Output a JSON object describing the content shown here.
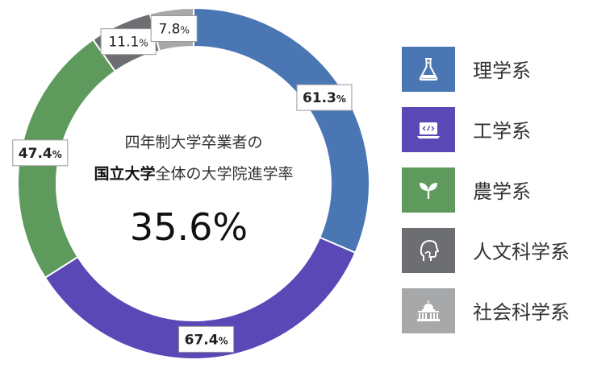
{
  "center": {
    "line1": "四年制大学卒業者の",
    "line2_bold": "国立大学",
    "line2_rest": "全体の大学院進学率",
    "value": "35.6%"
  },
  "chart_data": {
    "type": "donut",
    "categories": [
      "理学系",
      "工学系",
      "農学系",
      "人文科学系",
      "社会科学系"
    ],
    "values": [
      61.3,
      67.4,
      47.4,
      11.1,
      7.8
    ],
    "unit": "%",
    "colors": [
      "#4a77b4",
      "#5b48b7",
      "#5d9a5c",
      "#6d6e71",
      "#a7a8aa"
    ],
    "labels": [
      "61.3",
      "67.4",
      "47.4",
      "11.1",
      "7.8"
    ],
    "label_bold": [
      true,
      true,
      true,
      false,
      false
    ],
    "start": "12 o'clock",
    "direction": "clockwise"
  },
  "legend": {
    "items": [
      {
        "label": "理学系",
        "icon": "flask-icon",
        "color": "#4a77b4"
      },
      {
        "label": "工学系",
        "icon": "laptop-code-icon",
        "color": "#5b48b7"
      },
      {
        "label": "農学系",
        "icon": "sprout-icon",
        "color": "#5d9a5c"
      },
      {
        "label": "人文科学系",
        "icon": "thinker-head-icon",
        "color": "#6d6e71"
      },
      {
        "label": "社会科学系",
        "icon": "capitol-building-icon",
        "color": "#a7a8aa"
      }
    ]
  }
}
